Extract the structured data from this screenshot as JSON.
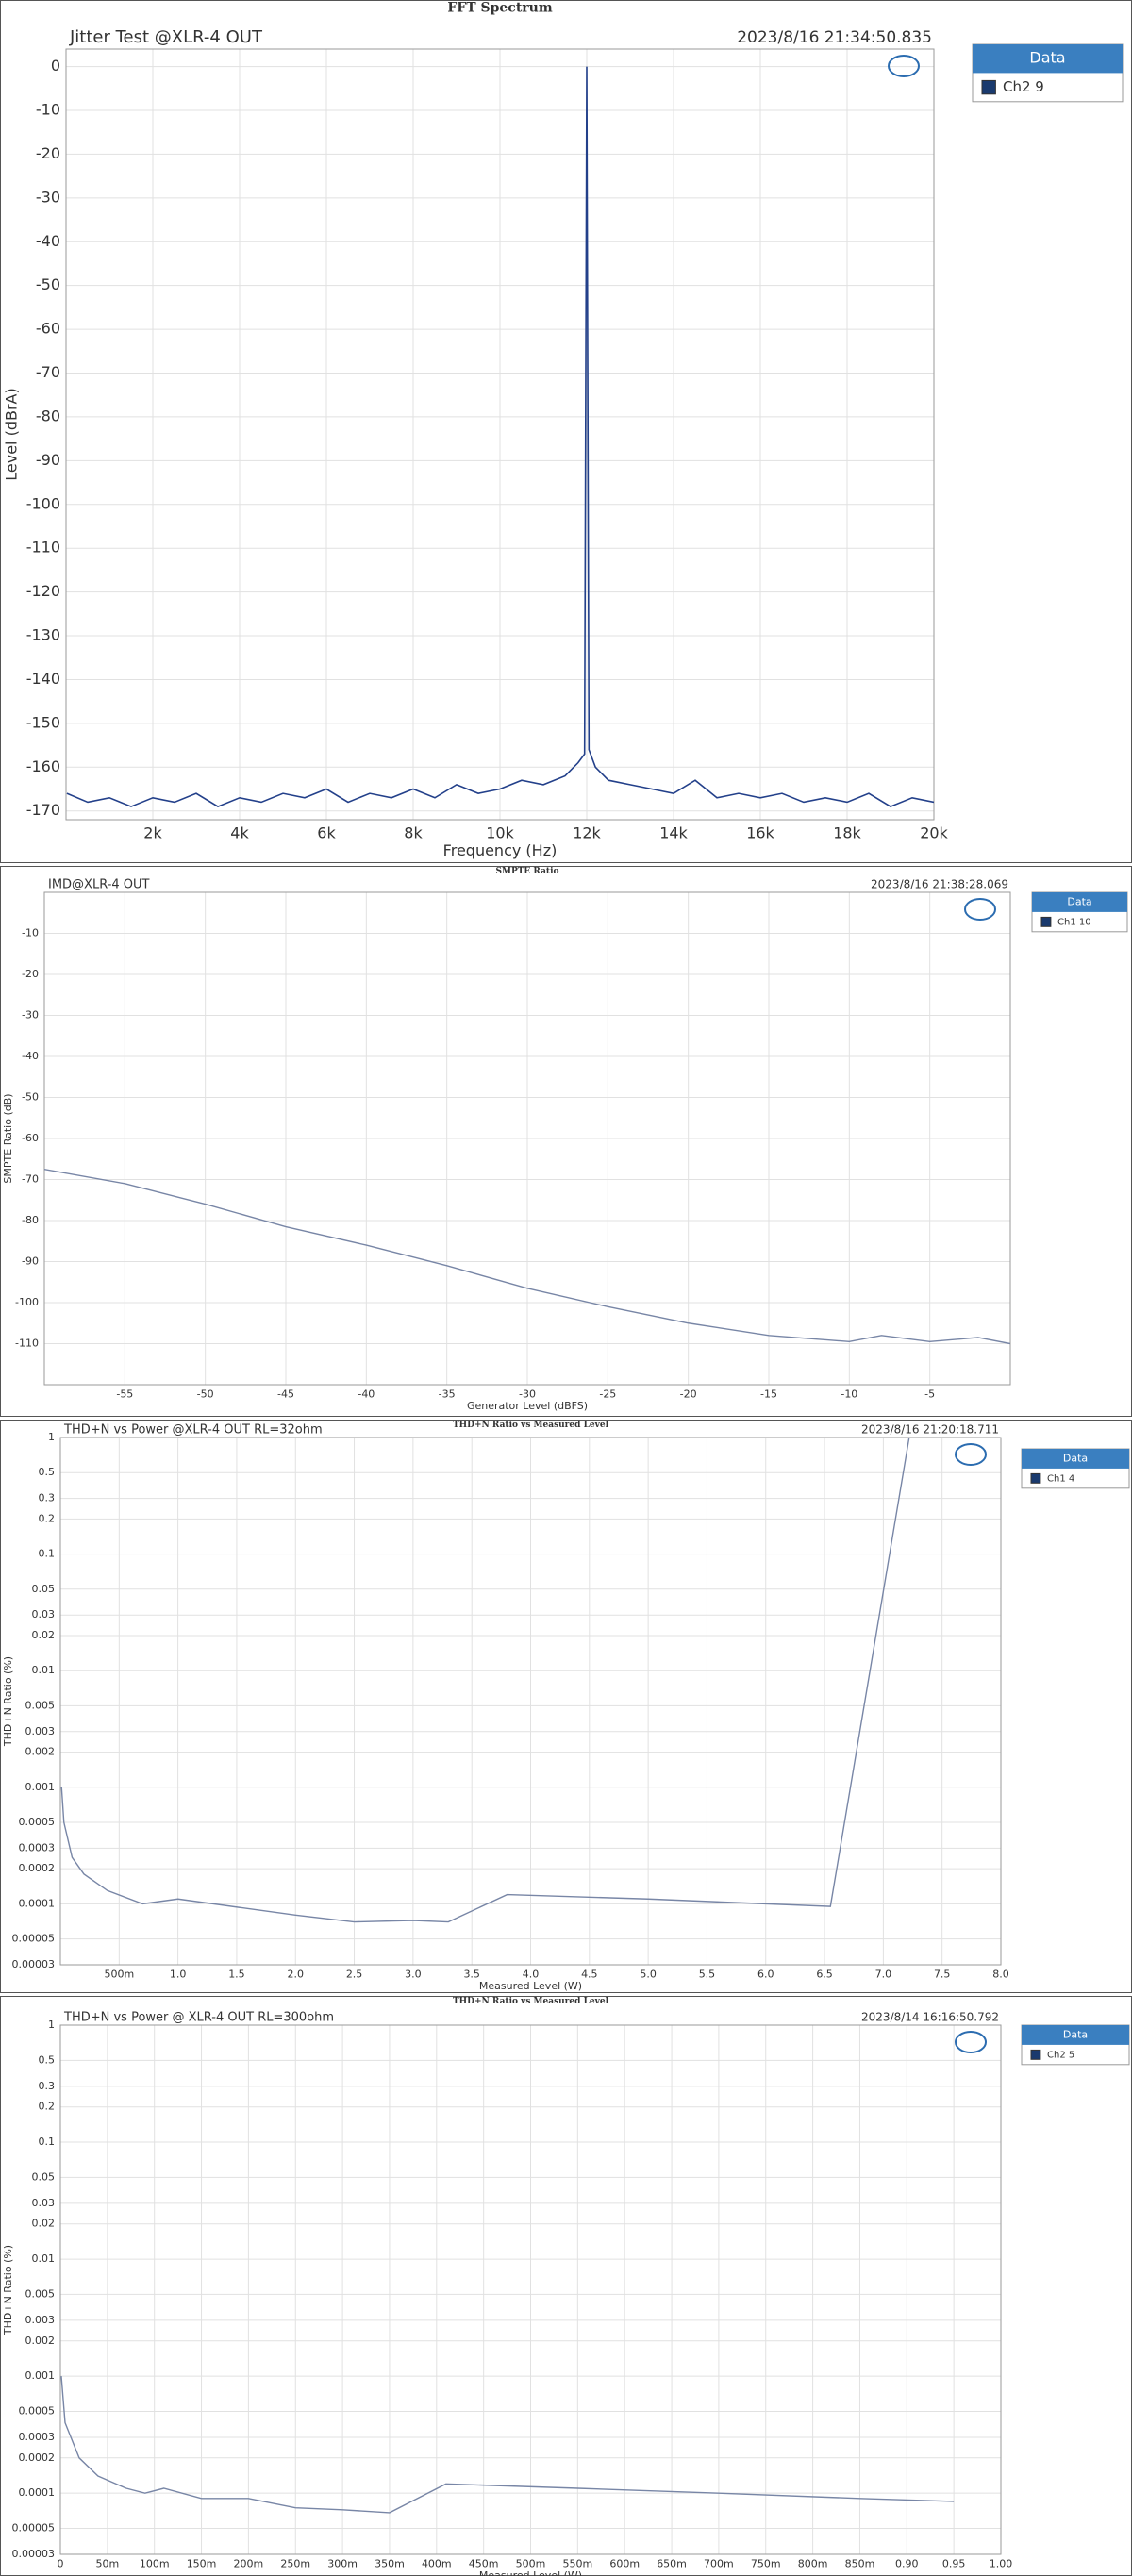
{
  "chart_data": [
    {
      "type": "line",
      "title": "FFT Spectrum",
      "subtitle": "Jitter Test @XLR-4 OUT",
      "timestamp": "2023/8/16 21:34:50.835",
      "xlabel": "Frequency (Hz)",
      "ylabel": "Level (dBrA)",
      "legend_title": "Data",
      "grid": true,
      "x": [
        20,
        500,
        1000,
        1500,
        2000,
        2500,
        3000,
        3500,
        4000,
        4500,
        5000,
        5500,
        6000,
        6500,
        7000,
        7500,
        8000,
        8500,
        9000,
        9500,
        10000,
        10500,
        11000,
        11500,
        11800,
        11950,
        12000,
        12050,
        12200,
        12500,
        13000,
        13500,
        14000,
        14500,
        15000,
        15500,
        16000,
        16500,
        17000,
        17500,
        18000,
        18500,
        19000,
        19500,
        20000
      ],
      "series": [
        {
          "name": "Ch2 9",
          "color": "#23408a",
          "values": [
            -166,
            -168,
            -167,
            -169,
            -167,
            -168,
            -166,
            -169,
            -167,
            -168,
            -166,
            -167,
            -165,
            -168,
            -166,
            -167,
            -165,
            -167,
            -164,
            -166,
            -165,
            -163,
            -164,
            -162,
            -159,
            -157,
            0,
            -156,
            -160,
            -163,
            -164,
            -165,
            -166,
            -163,
            -167,
            -166,
            -167,
            -166,
            -168,
            -167,
            -168,
            -166,
            -169,
            -167,
            -168
          ]
        }
      ],
      "xlim": [
        0,
        20000
      ],
      "ylim": [
        -172,
        4
      ],
      "xticks": [
        {
          "value": 2000,
          "label": "2k"
        },
        {
          "value": 4000,
          "label": "4k"
        },
        {
          "value": 6000,
          "label": "6k"
        },
        {
          "value": 8000,
          "label": "8k"
        },
        {
          "value": 10000,
          "label": "10k"
        },
        {
          "value": 12000,
          "label": "12k"
        },
        {
          "value": 14000,
          "label": "14k"
        },
        {
          "value": 16000,
          "label": "16k"
        },
        {
          "value": 18000,
          "label": "18k"
        },
        {
          "value": 20000,
          "label": "20k"
        }
      ],
      "yticks": [
        0,
        -10,
        -20,
        -30,
        -40,
        -50,
        -60,
        -70,
        -80,
        -90,
        -100,
        -110,
        -120,
        -130,
        -140,
        -150,
        -160,
        -170
      ]
    },
    {
      "type": "line",
      "title": "SMPTE Ratio",
      "subtitle": "IMD@XLR-4 OUT",
      "timestamp": "2023/8/16 21:38:28.069",
      "xlabel": "Generator Level (dBFS)",
      "ylabel": "SMPTE Ratio (dB)",
      "legend_title": "Data",
      "grid": true,
      "x": [
        -60,
        -55,
        -50,
        -45,
        -40,
        -35,
        -30,
        -25,
        -20,
        -15,
        -10,
        -8,
        -5,
        -2,
        0
      ],
      "series": [
        {
          "name": "Ch1 10",
          "color": "#7886a6",
          "values": [
            -67.5,
            -71,
            -76,
            -81.5,
            -86,
            -91,
            -96.5,
            -101,
            -105,
            -108,
            -109.5,
            -108,
            -109.5,
            -108.5,
            -110
          ]
        }
      ],
      "xlim": [
        -60,
        0
      ],
      "ylim": [
        -120,
        0
      ],
      "xticks": [
        -55,
        -50,
        -45,
        -40,
        -35,
        -30,
        -25,
        -20,
        -15,
        -10,
        -5
      ],
      "yticks": [
        -10,
        -20,
        -30,
        -40,
        -50,
        -60,
        -70,
        -80,
        -90,
        -100,
        -110
      ]
    },
    {
      "type": "line",
      "title": "THD+N Ratio vs Measured Level",
      "subtitle": "THD+N vs Power @XLR-4 OUT RL=32ohm",
      "timestamp": "2023/8/16 21:20:18.711",
      "xlabel": "Measured Level (W)",
      "ylabel": "THD+N Ratio (%)",
      "legend_title": "Data",
      "grid": true,
      "yscale": "log",
      "x": [
        0.01,
        0.03,
        0.1,
        0.2,
        0.4,
        0.7,
        1.0,
        1.3,
        2.0,
        2.5,
        3.0,
        3.3,
        3.8,
        5.0,
        6.0,
        6.55,
        7.22
      ],
      "series": [
        {
          "name": "Ch1 4",
          "color": "#7886a6",
          "values": [
            0.001,
            0.0005,
            0.00025,
            0.00018,
            0.00013,
            0.0001,
            0.00011,
            0.0001,
            8e-05,
            7e-05,
            7.2e-05,
            7e-05,
            0.00012,
            0.00011,
            0.0001,
            9.5e-05,
            1
          ]
        }
      ],
      "xlim": [
        0,
        8
      ],
      "ylim": [
        3e-05,
        1
      ],
      "xticks": [
        {
          "value": 0.5,
          "label": "500m"
        },
        {
          "value": 1,
          "label": "1.0"
        },
        {
          "value": 1.5,
          "label": "1.5"
        },
        {
          "value": 2,
          "label": "2.0"
        },
        {
          "value": 2.5,
          "label": "2.5"
        },
        {
          "value": 3,
          "label": "3.0"
        },
        {
          "value": 3.5,
          "label": "3.5"
        },
        {
          "value": 4,
          "label": "4.0"
        },
        {
          "value": 4.5,
          "label": "4.5"
        },
        {
          "value": 5,
          "label": "5.0"
        },
        {
          "value": 5.5,
          "label": "5.5"
        },
        {
          "value": 6,
          "label": "6.0"
        },
        {
          "value": 6.5,
          "label": "6.5"
        },
        {
          "value": 7,
          "label": "7.0"
        },
        {
          "value": 7.5,
          "label": "7.5"
        },
        {
          "value": 8,
          "label": "8.0"
        }
      ],
      "yticks": [
        1,
        0.5,
        0.3,
        0.2,
        0.1,
        0.05,
        0.03,
        0.02,
        0.01,
        0.005,
        0.003,
        0.002,
        0.001,
        0.0005,
        0.0003,
        0.0002,
        0.0001,
        5e-05,
        3e-05
      ]
    },
    {
      "type": "line",
      "title": "THD+N Ratio vs Measured Level",
      "subtitle": "THD+N vs Power @ XLR-4 OUT RL=300ohm",
      "timestamp": "2023/8/14 16:16:50.792",
      "xlabel": "Measured Level (W)",
      "ylabel": "THD+N Ratio (%)",
      "legend_title": "Data",
      "grid": true,
      "yscale": "log",
      "x": [
        0.001,
        0.005,
        0.02,
        0.04,
        0.07,
        0.09,
        0.11,
        0.15,
        0.2,
        0.25,
        0.3,
        0.35,
        0.41,
        0.55,
        0.7,
        0.85,
        0.95
      ],
      "series": [
        {
          "name": "Ch2 5",
          "color": "#7886a6",
          "values": [
            0.001,
            0.0004,
            0.0002,
            0.00014,
            0.00011,
            0.0001,
            0.00011,
            9e-05,
            9e-05,
            7.5e-05,
            7.2e-05,
            6.8e-05,
            0.00012,
            0.00011,
            0.0001,
            9e-05,
            8.5e-05
          ]
        }
      ],
      "xlim": [
        0,
        1
      ],
      "ylim": [
        3e-05,
        1
      ],
      "xticks": [
        0,
        {
          "value": 0.05,
          "label": "50m"
        },
        {
          "value": 0.1,
          "label": "100m"
        },
        {
          "value": 0.15,
          "label": "150m"
        },
        {
          "value": 0.2,
          "label": "200m"
        },
        {
          "value": 0.25,
          "label": "250m"
        },
        {
          "value": 0.3,
          "label": "300m"
        },
        {
          "value": 0.35,
          "label": "350m"
        },
        {
          "value": 0.4,
          "label": "400m"
        },
        {
          "value": 0.45,
          "label": "450m"
        },
        {
          "value": 0.5,
          "label": "500m"
        },
        {
          "value": 0.55,
          "label": "550m"
        },
        {
          "value": 0.6,
          "label": "600m"
        },
        {
          "value": 0.65,
          "label": "650m"
        },
        {
          "value": 0.7,
          "label": "700m"
        },
        {
          "value": 0.75,
          "label": "750m"
        },
        {
          "value": 0.8,
          "label": "800m"
        },
        {
          "value": 0.85,
          "label": "850m"
        },
        {
          "value": 0.9,
          "label": "0.90"
        },
        {
          "value": 0.95,
          "label": "0.95"
        },
        {
          "value": 1,
          "label": "1.00"
        }
      ],
      "yticks": [
        1,
        0.5,
        0.3,
        0.2,
        0.1,
        0.05,
        0.03,
        0.02,
        0.01,
        0.005,
        0.003,
        0.002,
        0.001,
        0.0005,
        0.0003,
        0.0002,
        0.0001,
        5e-05,
        3e-05
      ]
    }
  ]
}
